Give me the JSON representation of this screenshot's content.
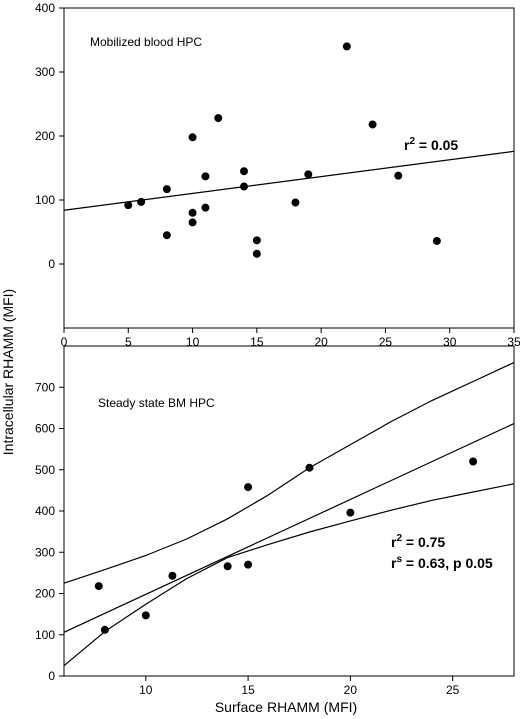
{
  "figure": {
    "ylabel": "Intracellular RHAMM (MFI)",
    "xlabel": "Surface RHAMM (MFI)"
  },
  "chart_data": [
    {
      "type": "scatter",
      "label": "Mobilized blood HPC",
      "xlim": [
        0,
        35
      ],
      "ylim": [
        -100,
        400
      ],
      "xticks": [
        "0",
        "5",
        "10",
        "15",
        "20",
        "25",
        "30",
        "35"
      ],
      "xtick_values": [
        0,
        5,
        10,
        15,
        20,
        25,
        30,
        35
      ],
      "yticks": [
        "0",
        "100",
        "200",
        "300",
        "400"
      ],
      "ytick_values": [
        0,
        100,
        200,
        300,
        400
      ],
      "points": [
        {
          "x": 5,
          "y": 92
        },
        {
          "x": 6,
          "y": 97
        },
        {
          "x": 8,
          "y": 117
        },
        {
          "x": 8,
          "y": 45
        },
        {
          "x": 10,
          "y": 198
        },
        {
          "x": 10,
          "y": 80
        },
        {
          "x": 10,
          "y": 65
        },
        {
          "x": 11,
          "y": 137
        },
        {
          "x": 11,
          "y": 88
        },
        {
          "x": 12,
          "y": 228
        },
        {
          "x": 14,
          "y": 145
        },
        {
          "x": 14,
          "y": 121
        },
        {
          "x": 15,
          "y": 37
        },
        {
          "x": 15,
          "y": 16
        },
        {
          "x": 18,
          "y": 96
        },
        {
          "x": 19,
          "y": 140
        },
        {
          "x": 22,
          "y": 340
        },
        {
          "x": 24,
          "y": 218
        },
        {
          "x": 26,
          "y": 138
        },
        {
          "x": 29,
          "y": 36
        }
      ],
      "regression": {
        "intercept": 84,
        "slope": 2.63
      },
      "stat_base": "r",
      "stat_sup": "2",
      "stat_value": " = 0.05",
      "grid": false
    },
    {
      "type": "scatter",
      "label": "Steady state BM HPC",
      "xlim": [
        6,
        28
      ],
      "ylim": [
        0,
        800
      ],
      "xticks": [
        "10",
        "15",
        "20",
        "25"
      ],
      "xtick_values": [
        10,
        15,
        20,
        25
      ],
      "yticks": [
        "0",
        "100",
        "200",
        "300",
        "400",
        "500",
        "600",
        "700"
      ],
      "ytick_values": [
        0,
        100,
        200,
        300,
        400,
        500,
        600,
        700
      ],
      "points": [
        {
          "x": 7.7,
          "y": 218
        },
        {
          "x": 8,
          "y": 112
        },
        {
          "x": 10,
          "y": 147
        },
        {
          "x": 11.3,
          "y": 243
        },
        {
          "x": 14,
          "y": 266
        },
        {
          "x": 15,
          "y": 458
        },
        {
          "x": 15,
          "y": 270
        },
        {
          "x": 18,
          "y": 505
        },
        {
          "x": 20,
          "y": 396
        },
        {
          "x": 26,
          "y": 520
        }
      ],
      "regression": {
        "intercept": -32,
        "slope": 23
      },
      "confidence_band": {
        "upper": [
          [
            6,
            225
          ],
          [
            8,
            258
          ],
          [
            10,
            292
          ],
          [
            12,
            332
          ],
          [
            14,
            381
          ],
          [
            16,
            439
          ],
          [
            18,
            505
          ],
          [
            20,
            561
          ],
          [
            22,
            617
          ],
          [
            24,
            668
          ],
          [
            26,
            714
          ],
          [
            28,
            760
          ]
        ],
        "lower": [
          [
            6,
            25
          ],
          [
            8,
            108
          ],
          [
            10,
            174
          ],
          [
            12,
            236
          ],
          [
            14,
            287
          ],
          [
            16,
            319
          ],
          [
            18,
            349
          ],
          [
            20,
            376
          ],
          [
            22,
            402
          ],
          [
            24,
            426
          ],
          [
            26,
            446
          ],
          [
            28,
            466
          ]
        ]
      },
      "stat_lines": [
        {
          "base": "r",
          "sup": "2",
          "text": " = 0.75"
        },
        {
          "base": "r",
          "sup": "s",
          "text": " = 0.63, p 0.05"
        }
      ],
      "grid": false
    }
  ]
}
